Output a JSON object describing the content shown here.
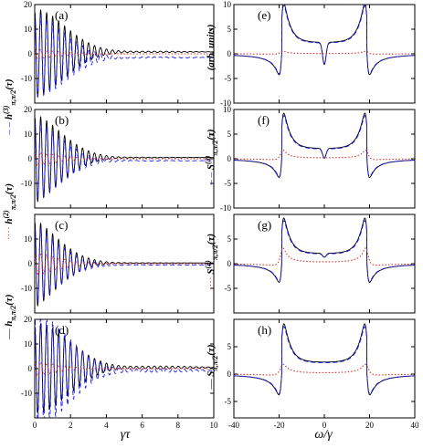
{
  "chart_data": [
    {
      "type": "line",
      "panel_label": "(a)",
      "ylabel": "h^{(3)}_{π,π/2}(τ)",
      "ylabel_prefix": "– –",
      "xlim": [
        0,
        10
      ],
      "ylim": [
        -20,
        20
      ],
      "xticks": [
        0,
        2,
        4,
        6,
        8,
        10
      ],
      "yticks": [
        -10,
        0,
        10,
        20
      ],
      "x_tick_labels": [
        "0",
        "2",
        "4",
        "6",
        "8",
        "10"
      ],
      "y_tick_labels": [
        "-10",
        "0",
        "10",
        "20"
      ],
      "series": [
        {
          "color": "#000000",
          "dash": "solid",
          "kind": "damped",
          "amp": 18,
          "omega": 18.8,
          "decay": 0.6,
          "offset": 0.8,
          "beat": 0
        },
        {
          "color": "#1a1aff",
          "dash": "dashed",
          "kind": "damped",
          "amp": 17,
          "omega": 18.8,
          "decay": 0.6,
          "offset": -1.5,
          "beat": 0
        },
        {
          "color": "#e03030",
          "dash": "dotted",
          "kind": "damped",
          "amp": 2,
          "omega": 18.8,
          "decay": 0.9,
          "offset": 0,
          "beat": 0
        }
      ]
    },
    {
      "type": "line",
      "panel_label": "(b)",
      "ylabel": "h^{(2)}_{π,π/2}(τ)",
      "ylabel_prefix": "····",
      "xlim": [
        0,
        10
      ],
      "ylim": [
        -20,
        20
      ],
      "xticks": [
        0,
        2,
        4,
        6,
        8,
        10
      ],
      "yticks": [
        -10,
        0,
        10,
        20
      ],
      "x_tick_labels": [
        "0",
        "2",
        "4",
        "6",
        "8",
        "10"
      ],
      "y_tick_labels": [
        "-10",
        "0",
        "10",
        "20"
      ],
      "series": [
        {
          "color": "#000000",
          "dash": "solid",
          "kind": "damped",
          "amp": 18,
          "omega": 18.8,
          "decay": 0.7,
          "offset": 0.5,
          "beat": 0
        },
        {
          "color": "#1a1aff",
          "dash": "dashed",
          "kind": "damped",
          "amp": 16,
          "omega": 18.8,
          "decay": 0.7,
          "offset": -0.8,
          "beat": 0
        },
        {
          "color": "#e03030",
          "dash": "dotted",
          "kind": "damped",
          "amp": 3,
          "omega": 18.8,
          "decay": 0.9,
          "offset": 0,
          "beat": 0
        }
      ]
    },
    {
      "type": "line",
      "panel_label": "(c)",
      "ylabel": "h_{π,π/2}(τ)",
      "ylabel_prefix": "—",
      "xlim": [
        0,
        10
      ],
      "ylim": [
        -20,
        20
      ],
      "xticks": [
        0,
        2,
        4,
        6,
        8,
        10
      ],
      "yticks": [
        -10,
        0,
        10
      ],
      "x_tick_labels": [
        "0",
        "2",
        "4",
        "6",
        "8",
        "10"
      ],
      "y_tick_labels": [
        "-10",
        "0",
        "10"
      ],
      "series": [
        {
          "color": "#000000",
          "dash": "solid",
          "kind": "damped",
          "amp": 18,
          "omega": 18.8,
          "decay": 0.8,
          "offset": 0.3,
          "beat": 0
        },
        {
          "color": "#1a1aff",
          "dash": "dashed",
          "kind": "damped",
          "amp": 16,
          "omega": 18.8,
          "decay": 0.8,
          "offset": -0.5,
          "beat": 0
        },
        {
          "color": "#e03030",
          "dash": "dotted",
          "kind": "damped",
          "amp": 5,
          "omega": 18.8,
          "decay": 0.9,
          "offset": 0,
          "beat": 0
        }
      ]
    },
    {
      "type": "line",
      "panel_label": "(d)",
      "xlabel": "γτ",
      "xlim": [
        0,
        10
      ],
      "ylim": [
        -20,
        20
      ],
      "xticks": [
        0,
        2,
        4,
        6,
        8,
        10
      ],
      "yticks": [
        -10,
        0,
        10,
        20
      ],
      "x_tick_labels": [
        "0",
        "2",
        "4",
        "6",
        "8",
        "10"
      ],
      "y_tick_labels": [
        "-10",
        "0",
        "10",
        "20"
      ],
      "series": [
        {
          "color": "#000000",
          "dash": "solid",
          "kind": "damped",
          "amp": 18,
          "omega": 18.8,
          "decay": 0.5,
          "offset": 0.5,
          "beat": 0
        },
        {
          "color": "#1a1aff",
          "dash": "dashed",
          "kind": "damped",
          "amp": 22,
          "omega": 18.8,
          "decay": 0.5,
          "offset": -0.8,
          "beat": 0
        },
        {
          "color": "#e03030",
          "dash": "dotted",
          "kind": "damped",
          "amp": 3,
          "omega": 18.8,
          "decay": 0.9,
          "offset": 0,
          "beat": 0
        }
      ]
    },
    {
      "type": "line",
      "panel_label": "(e)",
      "ylabel": "(arb. units)",
      "xlim": [
        -40,
        40
      ],
      "ylim": [
        -10,
        10
      ],
      "xticks": [
        -40,
        -20,
        0,
        20,
        40
      ],
      "yticks": [
        -10,
        -5,
        0,
        5,
        10
      ],
      "x_tick_labels": [
        "-40",
        "-20",
        "0",
        "20",
        "40"
      ],
      "y_tick_labels": [
        "-10",
        "-5",
        "0",
        "5",
        "10"
      ],
      "series": [
        {
          "color": "#000000",
          "dash": "solid",
          "kind": "spectrum",
          "amp": 1.0,
          "omega": 18.8,
          "width": 1.2,
          "center_dip": 4.5,
          "offset": 0
        },
        {
          "color": "#1a1aff",
          "dash": "dashed",
          "kind": "spectrum",
          "amp": 0.95,
          "omega": 18.8,
          "width": 1.2,
          "center_dip": 4.2,
          "offset": 0
        },
        {
          "color": "#e03030",
          "dash": "dotted",
          "kind": "flat",
          "amp": 0.3,
          "omega": 18.8,
          "width": 1.5,
          "center_dip": 0,
          "offset": 0.3
        }
      ]
    },
    {
      "type": "line",
      "panel_label": "(f)",
      "ylabel": "S^{(3)}_{π,π/2}(τ)",
      "ylabel_prefix": "– –",
      "xlim": [
        -40,
        40
      ],
      "ylim": [
        -10,
        10
      ],
      "xticks": [
        -40,
        -20,
        0,
        20,
        40
      ],
      "yticks": [
        -10,
        -5,
        0,
        5,
        10
      ],
      "x_tick_labels": [
        "-40",
        "-20",
        "0",
        "20",
        "40"
      ],
      "y_tick_labels": [
        "-10",
        "-5",
        "0",
        "5",
        "10"
      ],
      "series": [
        {
          "color": "#000000",
          "dash": "solid",
          "kind": "spectrum",
          "amp": 0.9,
          "omega": 18.8,
          "width": 1.2,
          "center_dip": 2.0,
          "offset": 0
        },
        {
          "color": "#1a1aff",
          "dash": "dashed",
          "kind": "spectrum",
          "amp": 0.85,
          "omega": 18.8,
          "width": 1.2,
          "center_dip": 1.8,
          "offset": 0
        },
        {
          "color": "#e03030",
          "dash": "dotted",
          "kind": "flat",
          "amp": 1.0,
          "omega": 18.8,
          "width": 1.5,
          "center_dip": 0,
          "offset": 0.8
        }
      ]
    },
    {
      "type": "line",
      "panel_label": "(g)",
      "ylabel": "S^{(2)}_{π,π/2}(τ)",
      "ylabel_prefix": "····",
      "xlim": [
        -40,
        40
      ],
      "ylim": [
        -10,
        10
      ],
      "xticks": [
        -40,
        -20,
        0,
        20,
        40
      ],
      "yticks": [
        -5,
        0,
        5
      ],
      "x_tick_labels": [
        "-40",
        "-20",
        "0",
        "20",
        "40"
      ],
      "y_tick_labels": [
        "-5",
        "0",
        "5"
      ],
      "series": [
        {
          "color": "#000000",
          "dash": "solid",
          "kind": "spectrum",
          "amp": 0.9,
          "omega": 18.8,
          "width": 1.2,
          "center_dip": 0.8,
          "offset": 0
        },
        {
          "color": "#1a1aff",
          "dash": "dashed",
          "kind": "spectrum",
          "amp": 0.85,
          "omega": 18.8,
          "width": 1.2,
          "center_dip": 0.7,
          "offset": 0
        },
        {
          "color": "#e03030",
          "dash": "dotted",
          "kind": "flat",
          "amp": 1.8,
          "omega": 18.8,
          "width": 1.5,
          "center_dip": 0,
          "offset": 0.3
        }
      ]
    },
    {
      "type": "line",
      "panel_label": "(h)",
      "ylabel": "S_{π,π/2}(τ)",
      "ylabel_prefix": "—",
      "xlabel": "ω/γ",
      "xlim": [
        -40,
        40
      ],
      "ylim": [
        -8,
        10
      ],
      "xticks": [
        -40,
        -20,
        0,
        20,
        40
      ],
      "yticks": [
        -5,
        0,
        5
      ],
      "x_tick_labels": [
        "-40",
        "-20",
        "0",
        "20",
        "40"
      ],
      "y_tick_labels": [
        "-5",
        "0",
        "5"
      ],
      "series": [
        {
          "color": "#000000",
          "dash": "solid",
          "kind": "spectrum",
          "amp": 0.9,
          "omega": 18.8,
          "width": 1.3,
          "center_dip": 0,
          "offset": 0
        },
        {
          "color": "#1a1aff",
          "dash": "dashed",
          "kind": "spectrum",
          "amp": 0.85,
          "omega": 18.8,
          "width": 1.3,
          "center_dip": 0,
          "offset": 0
        },
        {
          "color": "#e03030",
          "dash": "dotted",
          "kind": "flat",
          "amp": 1.0,
          "omega": 18.8,
          "width": 1.8,
          "center_dip": 0,
          "offset": 0
        }
      ]
    }
  ],
  "left_ylabels": [
    {
      "prefix": "– –",
      "main": "h",
      "sup": "(3)",
      "sub": "π,π/2",
      "tail": "(τ)"
    },
    {
      "prefix": "····",
      "main": "h",
      "sup": "(2)",
      "sub": "π,π/2",
      "tail": "(τ)"
    },
    {
      "prefix": "—",
      "main": "h",
      "sup": "",
      "sub": "π,π/2",
      "tail": "(τ)"
    }
  ],
  "right_ylabels": [
    {
      "prefix": "",
      "main": "(arb. units)",
      "sup": "",
      "sub": "",
      "tail": ""
    },
    {
      "prefix": "– –",
      "main": "S",
      "sup": "(3)",
      "sub": "π,π/2",
      "tail": "(τ)"
    },
    {
      "prefix": "····",
      "main": "S",
      "sup": "(2)",
      "sub": "π,π/2",
      "tail": "(τ)"
    },
    {
      "prefix": "—",
      "main": "S",
      "sup": "",
      "sub": "π,π/2",
      "tail": "(τ)"
    }
  ],
  "x_axis_labels": {
    "left": "γτ",
    "right": "ω/γ"
  }
}
